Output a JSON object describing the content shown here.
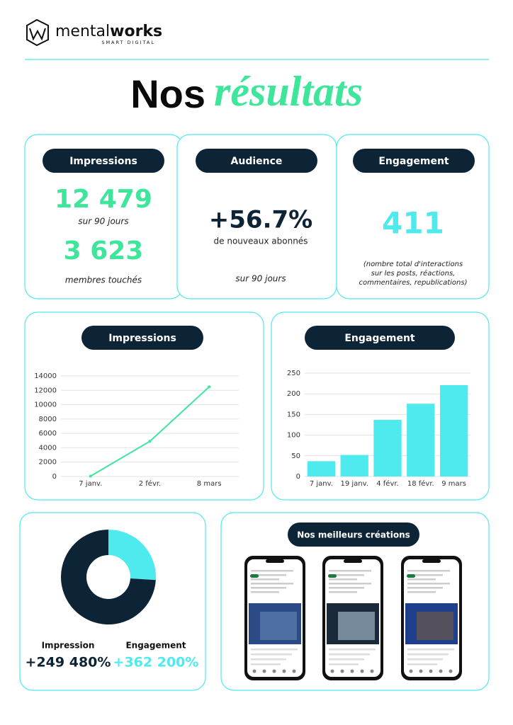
{
  "header": {
    "brand_1": "mental",
    "brand_2": "works",
    "tagline": "SMART DIGITAL"
  },
  "title": {
    "part_1": "Nos",
    "part_2": "résultats"
  },
  "kpis": [
    {
      "title": "Impressions",
      "value": "12 479",
      "text": "sur 90 jours",
      "value_2": "3 623",
      "text_2": "membres touchés"
    },
    {
      "title": "Audience",
      "value": "+56.7%",
      "text": "de nouveaux abonnés",
      "text_2": "sur 90 jours"
    },
    {
      "title": "Engagement",
      "value": "411",
      "note_lines": [
        "(nombre total d'interactions",
        "sur les posts, réactions,",
        "commentaires, republications)"
      ]
    }
  ],
  "chart_data": [
    {
      "type": "line",
      "title": "Impressions",
      "categories": [
        "7 janv.",
        "2 févr.",
        "8 mars"
      ],
      "values": [
        50,
        4900,
        12479
      ],
      "color": "#3de69b",
      "ylim": [
        0,
        14000
      ],
      "yticks": [
        0,
        2000,
        4000,
        6000,
        8000,
        10000,
        12000,
        14000
      ],
      "grid": true
    },
    {
      "type": "bar",
      "title": "Engagement",
      "categories": [
        "7 janv.",
        "19 janv.",
        "4 févr.",
        "18 févr.",
        "9 mars"
      ],
      "values": [
        37,
        52,
        137,
        176,
        221
      ],
      "color": "#4eeaee",
      "ylim": [
        0,
        250
      ],
      "yticks": [
        0,
        50,
        100,
        150,
        200,
        250
      ],
      "grid": true
    },
    {
      "type": "pie",
      "categories": [
        null,
        null
      ],
      "values": [
        26,
        74
      ],
      "colors": [
        "#4eeaee",
        "#0d2436"
      ],
      "donut": true
    }
  ],
  "growth": [
    {
      "label": "Impression",
      "value": "+249 480%",
      "color": "#0d2436"
    },
    {
      "label": "Engagement",
      "value": "+362 200%",
      "color": "#4eeaee"
    }
  ],
  "creations": {
    "title": "Nos meilleurs créations"
  }
}
